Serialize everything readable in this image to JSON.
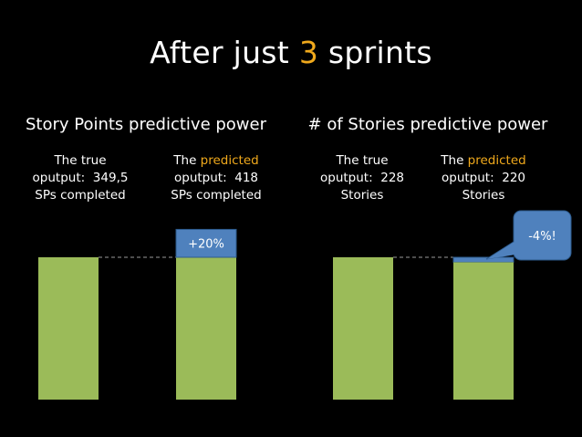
{
  "slide": {
    "title_before": "After just ",
    "title_number": "3",
    "title_after": " sprints",
    "accent_color": "#f0a91c",
    "bar_color": "#9bbb59",
    "delta_color": "#4f81bd"
  },
  "chart_data": [
    {
      "type": "bar",
      "title": "Story Points predictive power",
      "captions": [
        {
          "line1": "The true",
          "line2_label": "oputput:",
          "line2_value": "349,5",
          "line3": "SPs completed"
        },
        {
          "line1_pre": "The ",
          "line1_accent": "predicted",
          "line2_label": "oputput:",
          "line2_value": "418",
          "line3": "SPs completed"
        }
      ],
      "categories": [
        "The true oputput",
        "The predicted oputput"
      ],
      "values": [
        349.5,
        418
      ],
      "annotation": "+20%"
    },
    {
      "type": "bar",
      "title": "# of Stories predictive power",
      "captions": [
        {
          "line1": "The true",
          "line2_label": "oputput:",
          "line2_value": "228",
          "line3": "Stories"
        },
        {
          "line1_pre": "The ",
          "line1_accent": "predicted",
          "line2_label": "oputput:",
          "line2_value": "220",
          "line3": "Stories"
        }
      ],
      "categories": [
        "The true oputput",
        "The predicted oputput"
      ],
      "values": [
        228,
        220
      ],
      "annotation": "-4%!"
    }
  ]
}
